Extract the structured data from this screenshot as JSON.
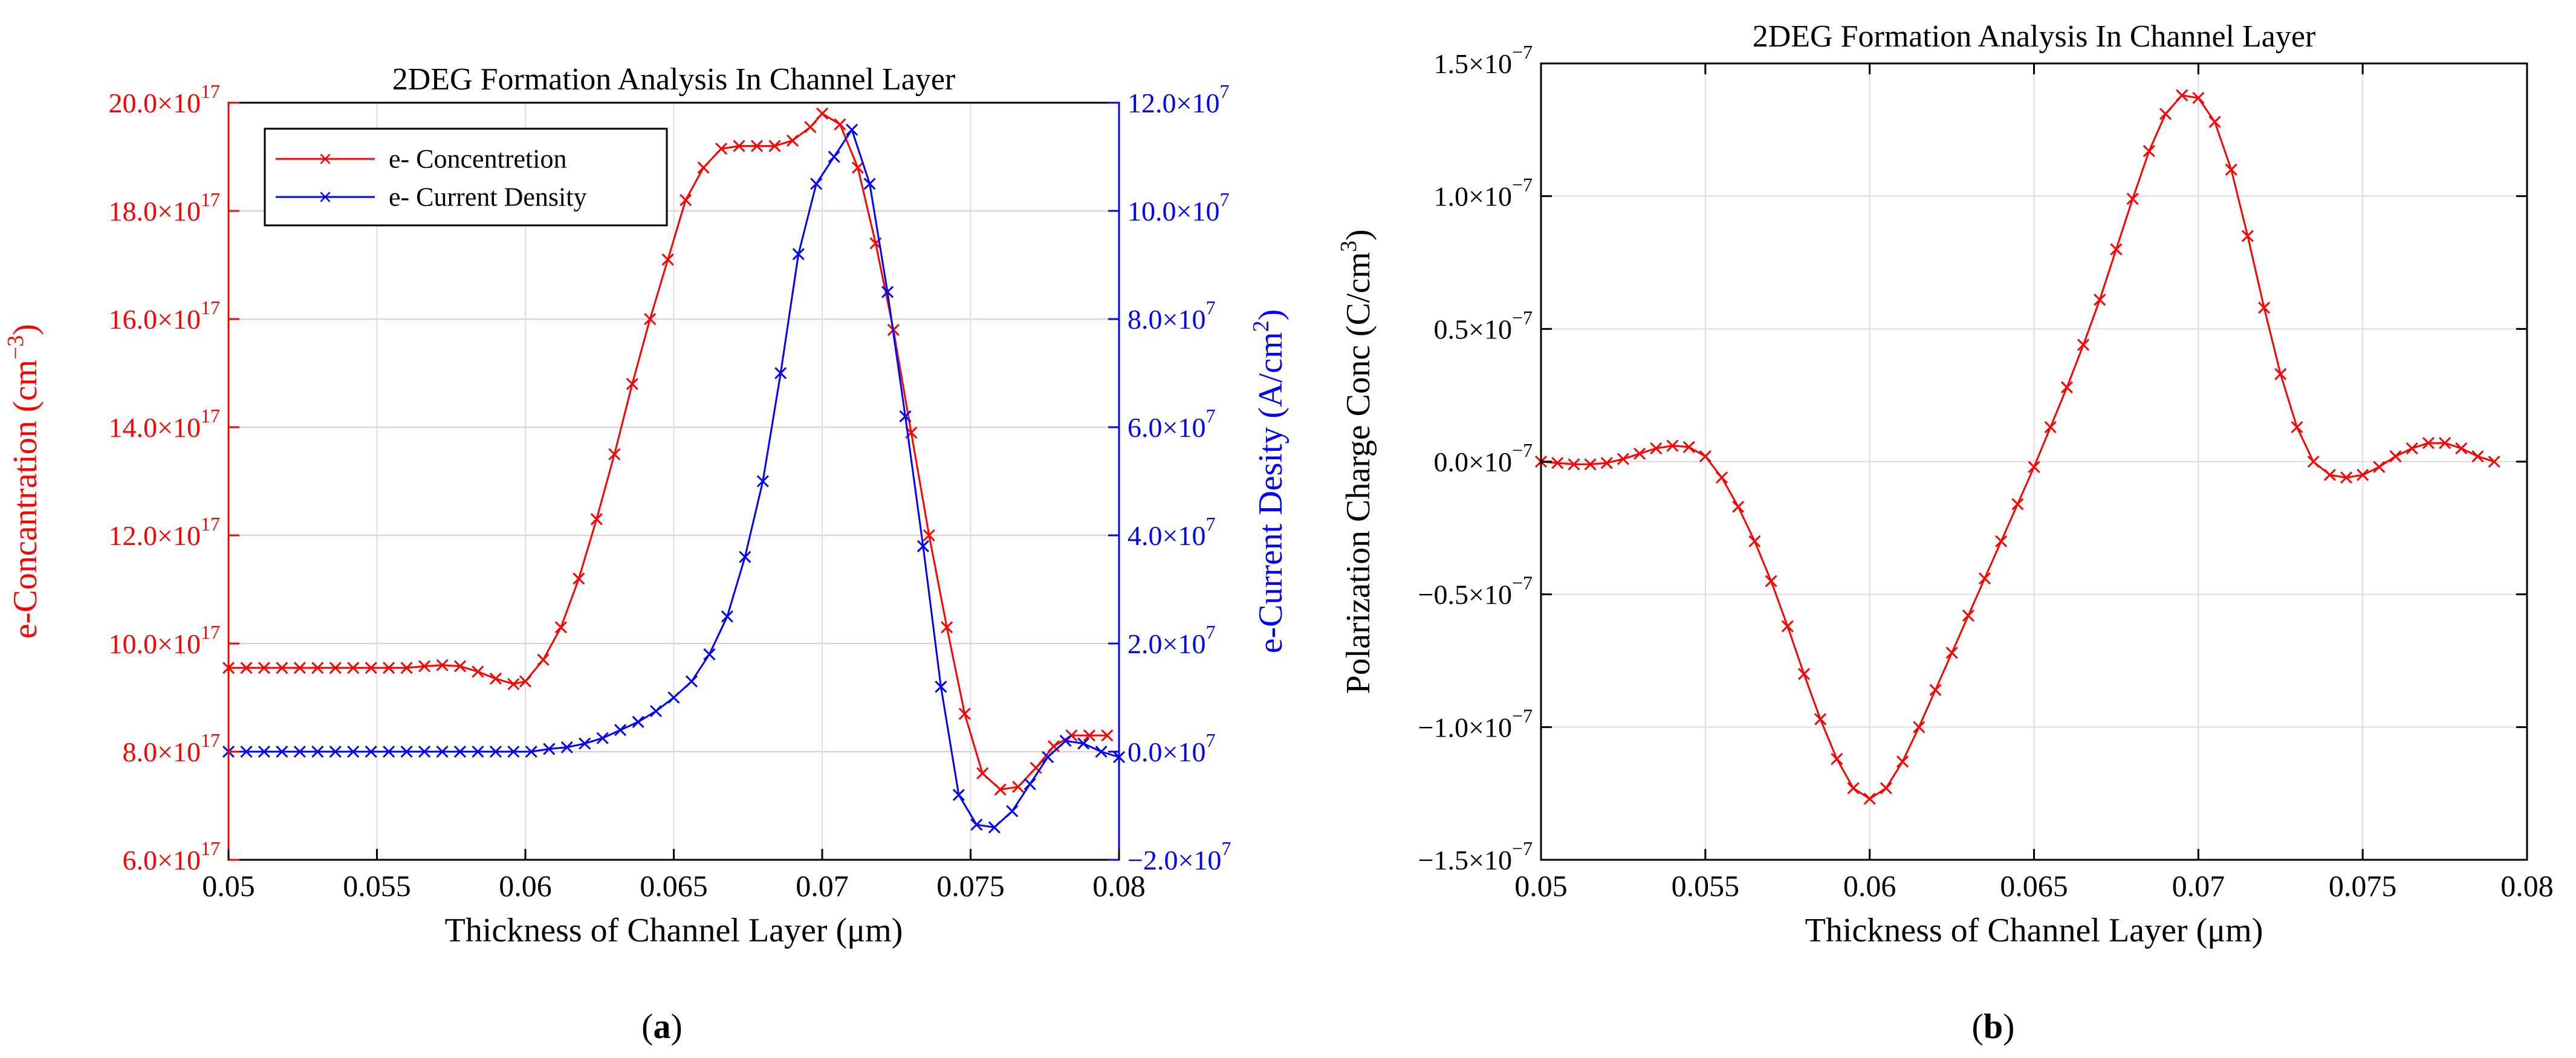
{
  "panels": {
    "a": {
      "label": "a"
    },
    "b": {
      "label": "b"
    }
  },
  "colors": {
    "red": "#ff0000",
    "blue": "#0000ff",
    "grid": "#dcdcdc"
  },
  "chart_data": [
    {
      "id": "a",
      "type": "line",
      "title": "2DEG Formation Analysis In Channel Layer",
      "xlabel": "Thickness of Channel Layer (μm)",
      "ylabel_left": "e-Concantration (cm",
      "ylabel_left_sup": "−3",
      "ylabel_left_end": ")",
      "ylabel_right": "e-Current Desity (A/cm",
      "ylabel_right_sup": "2",
      "ylabel_right_end": ")",
      "xlim": [
        0.05,
        0.08
      ],
      "ylim_left": [
        6,
        20
      ],
      "ylim_right": [
        -2,
        12
      ],
      "x_ticks": [
        "0.05",
        "0.055",
        "0.06",
        "0.065",
        "0.07",
        "0.075",
        "0.08"
      ],
      "y_ticks_left": [
        "6.0×10",
        "8.0×10",
        "10.0×10",
        "12.0×10",
        "14.0×10",
        "16.0×10",
        "18.0×10",
        "20.0×10"
      ],
      "y_ticks_left_exp": "17",
      "y_ticks_right": [
        "−2.0×10",
        "0.0×10",
        "2.0×10",
        "4.0×10",
        "6.0×10",
        "8.0×10",
        "10.0×10",
        "12.0×10"
      ],
      "y_ticks_right_exp": "7",
      "legend": {
        "position": "top-left",
        "entries": [
          "e- Concentretion",
          "e- Current Density"
        ]
      },
      "series": [
        {
          "name": "e- Concentretion",
          "axis": "left",
          "color": "#ff0000",
          "x": [
            0.05,
            0.0506,
            0.0512,
            0.0518,
            0.0524,
            0.053,
            0.0536,
            0.0542,
            0.0548,
            0.0554,
            0.056,
            0.0566,
            0.0572,
            0.0578,
            0.0584,
            0.059,
            0.0596,
            0.06,
            0.0606,
            0.0612,
            0.0618,
            0.0624,
            0.063,
            0.0636,
            0.0642,
            0.0648,
            0.0654,
            0.066,
            0.0666,
            0.0672,
            0.0678,
            0.0684,
            0.069,
            0.0696,
            0.07,
            0.0706,
            0.0712,
            0.0718,
            0.0724,
            0.073,
            0.0736,
            0.0742,
            0.0748,
            0.0754,
            0.076,
            0.0766,
            0.0772,
            0.0778,
            0.0784,
            0.079,
            0.0796
          ],
          "values": [
            9.55,
            9.55,
            9.55,
            9.55,
            9.55,
            9.55,
            9.55,
            9.55,
            9.55,
            9.55,
            9.55,
            9.58,
            9.6,
            9.58,
            9.48,
            9.35,
            9.25,
            9.3,
            9.7,
            10.3,
            11.2,
            12.3,
            13.5,
            14.8,
            16.0,
            17.1,
            18.2,
            18.8,
            19.15,
            19.2,
            19.2,
            19.2,
            19.3,
            19.55,
            19.8,
            19.6,
            18.8,
            17.4,
            15.8,
            13.9,
            12.0,
            10.3,
            8.7,
            7.6,
            7.3,
            7.35,
            7.7,
            8.1,
            8.3,
            8.3,
            8.3
          ]
        },
        {
          "name": "e- Current Density",
          "axis": "right",
          "color": "#0000ff",
          "x": [
            0.05,
            0.0506,
            0.0512,
            0.0518,
            0.0524,
            0.053,
            0.0536,
            0.0542,
            0.0548,
            0.0554,
            0.056,
            0.0566,
            0.0572,
            0.0578,
            0.0584,
            0.059,
            0.0596,
            0.0602,
            0.0608,
            0.0614,
            0.062,
            0.0626,
            0.0632,
            0.0638,
            0.0644,
            0.065,
            0.0656,
            0.0662,
            0.0668,
            0.0674,
            0.068,
            0.0686,
            0.0692,
            0.0698,
            0.0704,
            0.071,
            0.0716,
            0.0722,
            0.0728,
            0.0734,
            0.074,
            0.0746,
            0.0752,
            0.0758,
            0.0764,
            0.077,
            0.0776,
            0.0782,
            0.0788,
            0.0794,
            0.08
          ],
          "values": [
            0,
            0,
            0,
            0,
            0,
            0,
            0,
            0,
            0,
            0,
            0,
            0,
            0,
            0,
            0,
            0,
            0,
            0,
            0.05,
            0.08,
            0.15,
            0.25,
            0.4,
            0.55,
            0.75,
            1.0,
            1.3,
            1.8,
            2.5,
            3.6,
            5.0,
            7.0,
            9.2,
            10.5,
            11.0,
            11.5,
            10.5,
            8.5,
            6.2,
            3.8,
            1.2,
            -0.8,
            -1.35,
            -1.4,
            -1.1,
            -0.6,
            -0.1,
            0.2,
            0.15,
            0.0,
            -0.1
          ]
        }
      ]
    },
    {
      "id": "b",
      "type": "line",
      "title": "2DEG Formation Analysis In Channel Layer",
      "xlabel": "Thickness of Channel Layer (μm)",
      "ylabel": "Polarization Charge Conc (C/cm",
      "ylabel_sup": "3",
      "ylabel_end": ")",
      "xlim": [
        0.05,
        0.08
      ],
      "ylim": [
        -1.5,
        1.5
      ],
      "x_ticks": [
        "0.05",
        "0.055",
        "0.06",
        "0.065",
        "0.07",
        "0.075",
        "0.08"
      ],
      "y_ticks": [
        "−1.5×10",
        "−1.0×10",
        "−0.5×10",
        "0.0×10",
        "0.5×10",
        "1.0×10",
        "1.5×10"
      ],
      "y_ticks_exp": "−7",
      "series": [
        {
          "name": "Polarization Charge",
          "color": "#ff0000",
          "x": [
            0.05,
            0.0505,
            0.051,
            0.0515,
            0.052,
            0.0525,
            0.053,
            0.0535,
            0.054,
            0.0545,
            0.055,
            0.0555,
            0.056,
            0.0565,
            0.057,
            0.0575,
            0.058,
            0.0585,
            0.059,
            0.0595,
            0.06,
            0.0605,
            0.061,
            0.0615,
            0.062,
            0.0625,
            0.063,
            0.0635,
            0.064,
            0.0645,
            0.065,
            0.0655,
            0.066,
            0.0665,
            0.067,
            0.0675,
            0.068,
            0.0685,
            0.069,
            0.0695,
            0.07,
            0.0705,
            0.071,
            0.0715,
            0.072,
            0.0725,
            0.073,
            0.0735,
            0.074,
            0.0745,
            0.075,
            0.0755,
            0.076,
            0.0765,
            0.077,
            0.0775,
            0.078,
            0.0785,
            0.079
          ],
          "values": [
            0.0,
            -0.005,
            -0.01,
            -0.01,
            -0.005,
            0.01,
            0.03,
            0.05,
            0.06,
            0.055,
            0.02,
            -0.06,
            -0.17,
            -0.3,
            -0.45,
            -0.62,
            -0.8,
            -0.97,
            -1.12,
            -1.23,
            -1.27,
            -1.23,
            -1.13,
            -1.0,
            -0.86,
            -0.72,
            -0.58,
            -0.44,
            -0.3,
            -0.16,
            -0.02,
            0.13,
            0.28,
            0.44,
            0.61,
            0.8,
            0.99,
            1.17,
            1.31,
            1.38,
            1.37,
            1.28,
            1.1,
            0.85,
            0.58,
            0.33,
            0.13,
            0.0,
            -0.05,
            -0.06,
            -0.05,
            -0.02,
            0.02,
            0.05,
            0.07,
            0.07,
            0.05,
            0.02,
            0.0
          ]
        }
      ]
    }
  ]
}
